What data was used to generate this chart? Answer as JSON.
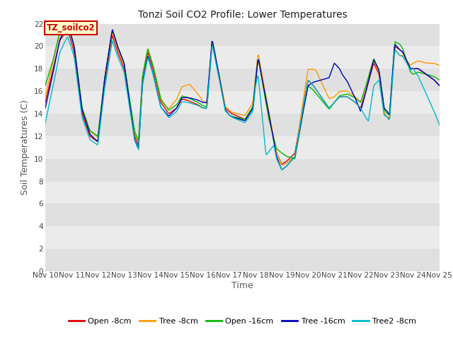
{
  "title": "Tonzi Soil CO2 Profile: Lower Temperatures",
  "xlabel": "Time",
  "ylabel": "Soil Temperatures (C)",
  "ylim": [
    0,
    22
  ],
  "yticks": [
    0,
    2,
    4,
    6,
    8,
    10,
    12,
    14,
    16,
    18,
    20,
    22
  ],
  "series": [
    {
      "label": "Open -8cm",
      "color": "#dd0000"
    },
    {
      "label": "Tree -8cm",
      "color": "#ff9900"
    },
    {
      "label": "Open -16cm",
      "color": "#00bb00"
    },
    {
      "label": "Tree -16cm",
      "color": "#0000bb"
    },
    {
      "label": "Tree2 -8cm",
      "color": "#00bbcc"
    }
  ],
  "annotation_text": "TZ_soilco2",
  "annotation_color": "#cc0000",
  "annotation_bg": "#ffffcc",
  "x_start": 10.0,
  "x_end": 25.0,
  "xtick_positions": [
    10,
    11,
    12,
    13,
    14,
    15,
    16,
    17,
    18,
    19,
    20,
    21,
    22,
    23,
    24,
    25
  ],
  "xtick_labels": [
    "Nov 10",
    "Nov 11",
    "Nov 12",
    "Nov 13",
    "Nov 14",
    "Nov 15",
    "Nov 16",
    "Nov 17",
    "Nov 18",
    "Nov 19",
    "Nov 20",
    "Nov 21",
    "Nov 22",
    "Nov 23",
    "Nov 24",
    "Nov 25"
  ],
  "band_colors": [
    "#e0e0e0",
    "#ebebeb"
  ],
  "title_fontsize": 10,
  "axis_label_fontsize": 9,
  "tick_fontsize": 7.5
}
